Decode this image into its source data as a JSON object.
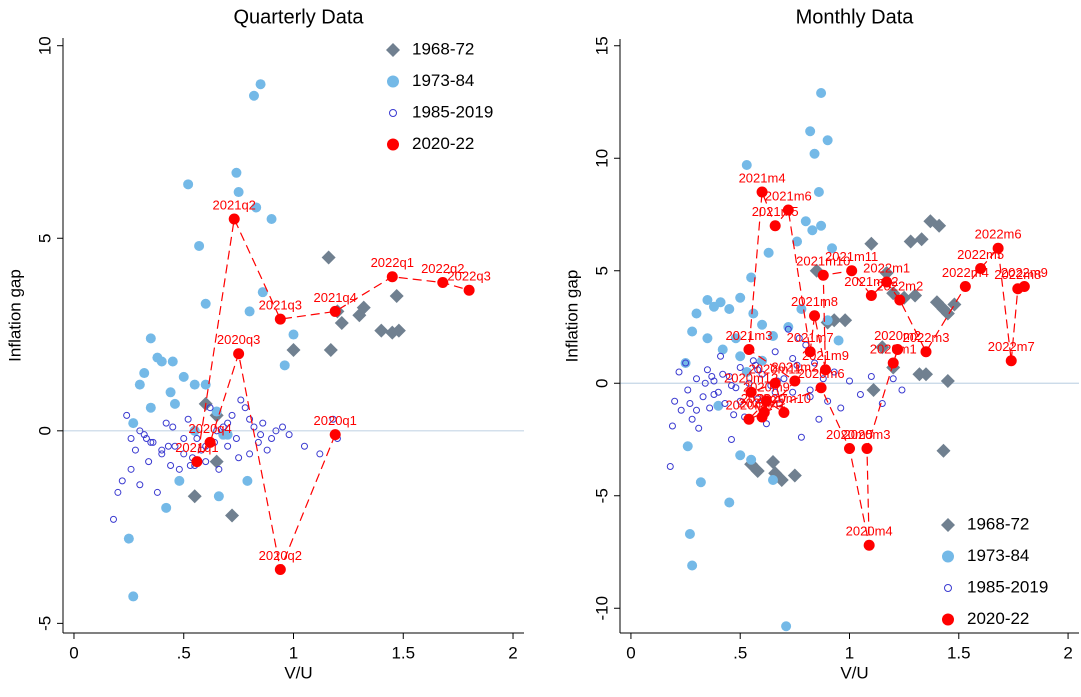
{
  "chart_data": [
    {
      "type": "scatter",
      "title": "Quarterly Data",
      "xlabel": "V/U",
      "ylabel": "Inflation gap",
      "xlim": [
        -0.05,
        2.05
      ],
      "ylim": [
        -5.25,
        10.2
      ],
      "xticks": [
        0,
        {
          "value": 0.5,
          "label": ".5"
        },
        1,
        1.5,
        2
      ],
      "yticks": [
        -5,
        0,
        5,
        10
      ],
      "hline": 0,
      "legend": "top-right",
      "series": [
        {
          "name": "1968-72",
          "color": "#708090",
          "marker": "diamond",
          "x": [
            0.55,
            0.72,
            0.65,
            0.6,
            0.65,
            1.0,
            1.17,
            1.16,
            1.2,
            1.22,
            1.3,
            1.32,
            1.4,
            1.45,
            1.48,
            1.47
          ],
          "values": [
            -1.7,
            -2.2,
            -0.8,
            0.7,
            0.4,
            2.1,
            2.1,
            4.5,
            3.1,
            2.8,
            3.0,
            3.2,
            2.6,
            2.55,
            2.6,
            3.5
          ]
        },
        {
          "name": "1973-84",
          "color": "#74b9e7",
          "marker": "circle",
          "x": [
            0.82,
            0.85,
            0.74,
            0.75,
            0.52,
            0.57,
            0.83,
            0.9,
            0.8,
            0.86,
            0.6,
            0.96,
            0.35,
            0.38,
            0.4,
            0.45,
            0.32,
            0.5,
            0.55,
            0.44,
            0.46,
            0.3,
            0.35,
            0.27,
            0.6,
            0.65,
            0.25,
            0.27,
            0.42,
            0.48,
            0.66,
            0.55,
            0.7,
            1.0,
            0.79,
            0.68
          ],
          "values": [
            8.7,
            9.0,
            6.7,
            6.2,
            6.4,
            4.8,
            5.8,
            5.5,
            3.1,
            3.6,
            3.3,
            1.7,
            2.4,
            1.9,
            1.8,
            1.8,
            1.5,
            1.4,
            1.2,
            1.0,
            0.7,
            1.2,
            0.6,
            0.2,
            1.2,
            0.5,
            -2.8,
            -4.3,
            -2.0,
            -1.3,
            -1.7,
            0.0,
            -0.1,
            2.5,
            -1.3,
            -0.1
          ]
        },
        {
          "name": "1985-2019",
          "color": "#3a3ad0",
          "marker": "hollow-circle",
          "x": [
            0.18,
            0.2,
            0.22,
            0.24,
            0.26,
            0.28,
            0.3,
            0.32,
            0.34,
            0.36,
            0.38,
            0.4,
            0.42,
            0.44,
            0.46,
            0.48,
            0.5,
            0.52,
            0.54,
            0.56,
            0.58,
            0.6,
            0.62,
            0.64,
            0.66,
            0.68,
            0.7,
            0.72,
            0.74,
            0.76,
            0.78,
            0.8,
            0.82,
            0.84,
            0.86,
            0.88,
            0.9,
            0.92,
            0.95,
            0.98,
            1.05,
            1.12,
            1.18,
            1.2,
            0.3,
            0.35,
            0.4,
            0.45,
            0.5,
            0.55,
            0.6,
            0.65,
            0.7,
            0.75,
            0.8,
            0.85,
            0.26,
            0.33,
            0.43,
            0.53
          ],
          "values": [
            -2.3,
            -1.6,
            -1.3,
            0.4,
            -0.2,
            -0.5,
            -1.4,
            -0.1,
            -0.8,
            -0.3,
            -1.6,
            -0.5,
            0.2,
            -0.9,
            -0.4,
            -1.0,
            -0.6,
            0.3,
            -0.7,
            -0.2,
            -0.5,
            -0.8,
            0.6,
            -0.3,
            -1.0,
            0.1,
            -0.4,
            0.4,
            -0.2,
            0.8,
            0.6,
            -0.6,
            0.1,
            -0.3,
            0.2,
            -0.5,
            -0.2,
            0.0,
            0.1,
            -0.1,
            -0.4,
            -0.6,
            0.3,
            -0.2,
            0.0,
            -0.3,
            -0.6,
            0.1,
            -0.2,
            -0.9,
            -0.4,
            0.0,
            0.2,
            -0.7,
            0.3,
            -0.1,
            -1.0,
            -0.2,
            -0.4,
            -0.9
          ]
        },
        {
          "name": "2020-22",
          "color": "#ff0000",
          "marker": "circle",
          "line_style": "dashed",
          "labels": [
            "2020q1",
            "2020q2",
            "2020q3",
            "2020q4",
            "2021q1",
            "2021q2",
            "2021q3",
            "2021q4",
            "2022q1",
            "2022q2",
            "2022q3"
          ],
          "x": [
            1.19,
            0.94,
            0.75,
            0.62,
            0.56,
            0.73,
            0.94,
            1.19,
            1.45,
            1.68,
            1.8
          ],
          "values": [
            -0.1,
            -3.6,
            2.0,
            -0.3,
            -0.8,
            5.5,
            2.9,
            3.1,
            4.0,
            3.85,
            3.65
          ]
        }
      ]
    },
    {
      "type": "scatter",
      "title": "Monthly Data",
      "xlabel": "V/U",
      "ylabel": "Inflation gap",
      "xlim": [
        -0.05,
        2.05
      ],
      "ylim": [
        -11.1,
        15.3
      ],
      "xticks": [
        0,
        {
          "value": 0.5,
          "label": ".5"
        },
        1,
        1.5,
        2
      ],
      "yticks": [
        -10,
        -5,
        0,
        5,
        10,
        15
      ],
      "hline": 0,
      "legend": "bottom-right",
      "series": [
        {
          "name": "1968-72",
          "color": "#708090",
          "marker": "diamond",
          "x": [
            0.55,
            0.58,
            0.65,
            0.66,
            0.69,
            0.75,
            0.85,
            0.9,
            0.93,
            0.98,
            1.1,
            1.17,
            1.2,
            1.25,
            1.28,
            1.3,
            1.33,
            1.37,
            1.41,
            1.4,
            1.43,
            1.45,
            1.43,
            1.32,
            1.35,
            1.2,
            1.15,
            1.11,
            1.45,
            1.48
          ],
          "values": [
            -3.6,
            -3.9,
            -3.5,
            -4.0,
            -4.3,
            -4.1,
            5.0,
            2.7,
            2.8,
            2.8,
            6.2,
            4.9,
            4.0,
            3.8,
            6.3,
            3.9,
            6.4,
            7.2,
            7.0,
            3.6,
            3.3,
            0.1,
            -3.0,
            0.4,
            0.4,
            0.7,
            1.6,
            -0.3,
            3.1,
            3.5
          ]
        },
        {
          "name": "1973-84",
          "color": "#74b9e7",
          "marker": "circle",
          "x": [
            0.87,
            0.82,
            0.84,
            0.9,
            0.53,
            0.86,
            0.8,
            0.87,
            0.83,
            0.76,
            0.92,
            0.63,
            0.55,
            0.5,
            0.35,
            0.41,
            0.38,
            0.45,
            0.56,
            0.6,
            0.3,
            0.28,
            0.35,
            0.42,
            0.5,
            0.65,
            0.72,
            0.78,
            0.9,
            0.95,
            0.26,
            0.27,
            0.28,
            0.32,
            0.45,
            0.5,
            0.55,
            0.71,
            0.65,
            0.4,
            0.25,
            0.48,
            0.53,
            0.6
          ],
          "values": [
            12.9,
            11.2,
            10.2,
            10.8,
            9.7,
            8.5,
            7.2,
            7.0,
            6.8,
            6.3,
            6.0,
            5.8,
            4.7,
            3.8,
            3.7,
            3.6,
            3.4,
            3.3,
            3.1,
            2.6,
            3.1,
            2.3,
            2.0,
            1.5,
            1.2,
            2.1,
            2.5,
            3.3,
            2.8,
            1.9,
            -2.8,
            -6.7,
            -8.1,
            -4.4,
            -5.3,
            -3.2,
            -3.4,
            -10.8,
            -4.3,
            -1.0,
            0.9,
            2.0,
            0.5,
            1.0
          ]
        },
        {
          "name": "1985-2019",
          "color": "#3a3ad0",
          "marker": "hollow-circle",
          "x": [
            0.18,
            0.19,
            0.2,
            0.22,
            0.23,
            0.25,
            0.26,
            0.28,
            0.3,
            0.31,
            0.33,
            0.35,
            0.36,
            0.38,
            0.4,
            0.41,
            0.43,
            0.45,
            0.46,
            0.48,
            0.5,
            0.52,
            0.54,
            0.56,
            0.58,
            0.6,
            0.62,
            0.64,
            0.66,
            0.68,
            0.7,
            0.72,
            0.74,
            0.76,
            0.78,
            0.8,
            0.82,
            0.84,
            0.86,
            0.88,
            0.9,
            0.93,
            0.96,
            1.0,
            1.05,
            1.1,
            1.15,
            1.2,
            1.24,
            0.3,
            0.34,
            0.38,
            0.42,
            0.46,
            0.5,
            0.58,
            0.66,
            0.74,
            0.82,
            0.27,
            0.37,
            0.47,
            0.57,
            0.67,
            0.77
          ],
          "values": [
            -3.7,
            -1.9,
            -0.8,
            0.5,
            -1.2,
            0.9,
            -0.3,
            -1.6,
            0.2,
            -2.0,
            -0.6,
            0.6,
            -1.1,
            0.1,
            -0.4,
            1.2,
            -0.9,
            0.3,
            -2.5,
            -0.2,
            0.7,
            -1.5,
            0.0,
            1.0,
            -0.7,
            0.4,
            -1.8,
            -0.1,
            1.4,
            -0.9,
            0.2,
            2.4,
            -0.4,
            0.8,
            -2.4,
            1.7,
            -0.3,
            0.9,
            -1.6,
            0.2,
            -0.8,
            0.5,
            -1.1,
            0.1,
            -0.5,
            0.3,
            -0.9,
            0.2,
            -0.3,
            -1.2,
            0.0,
            -0.5,
            0.4,
            -0.1,
            -0.8,
            0.6,
            -0.4,
            1.1,
            -0.6,
            -0.9,
            0.3,
            -1.4,
            0.8,
            0.1,
            2.0
          ]
        },
        {
          "name": "2020-22",
          "color": "#ff0000",
          "marker": "circle",
          "line_style": "dashed",
          "labels": [
            "2020m1",
            "2020m2",
            "2020m3",
            "2020m4",
            "2020m5",
            "2020m6",
            "2020m7",
            "2020m8",
            "2020m9",
            "2020m10",
            "2020m11",
            "2020m12",
            "2021m1",
            "2021m2",
            "2021m3",
            "2021m4",
            "2021m5",
            "2021m6",
            "2021m7",
            "2021m8",
            "2021m9",
            "2021m10",
            "2021m11",
            "2021m12",
            "2022m1",
            "2022m2",
            "2022m3",
            "2022m4",
            "2022m5",
            "2022m6",
            "2022m7",
            "2022m8",
            "2022m9"
          ],
          "x": [
            1.2,
            1.22,
            1.08,
            1.09,
            1.0,
            0.87,
            0.61,
            0.54,
            0.62,
            0.7,
            0.66,
            0.55,
            0.6,
            0.75,
            0.54,
            0.6,
            0.66,
            0.72,
            0.82,
            0.84,
            0.89,
            0.88,
            1.01,
            1.1,
            1.17,
            1.23,
            1.35,
            1.53,
            1.6,
            1.68,
            1.74,
            1.77,
            1.8
          ],
          "values": [
            0.9,
            1.5,
            -2.9,
            -7.2,
            -2.9,
            -0.2,
            -1.3,
            -1.6,
            -0.8,
            -1.3,
            0.0,
            -0.4,
            -1.5,
            0.1,
            1.5,
            8.5,
            7.0,
            7.7,
            1.4,
            3.0,
            0.6,
            4.8,
            5.0,
            3.9,
            4.5,
            3.7,
            1.4,
            4.3,
            5.1,
            6.0,
            1.0,
            4.2,
            4.3
          ]
        }
      ]
    }
  ]
}
